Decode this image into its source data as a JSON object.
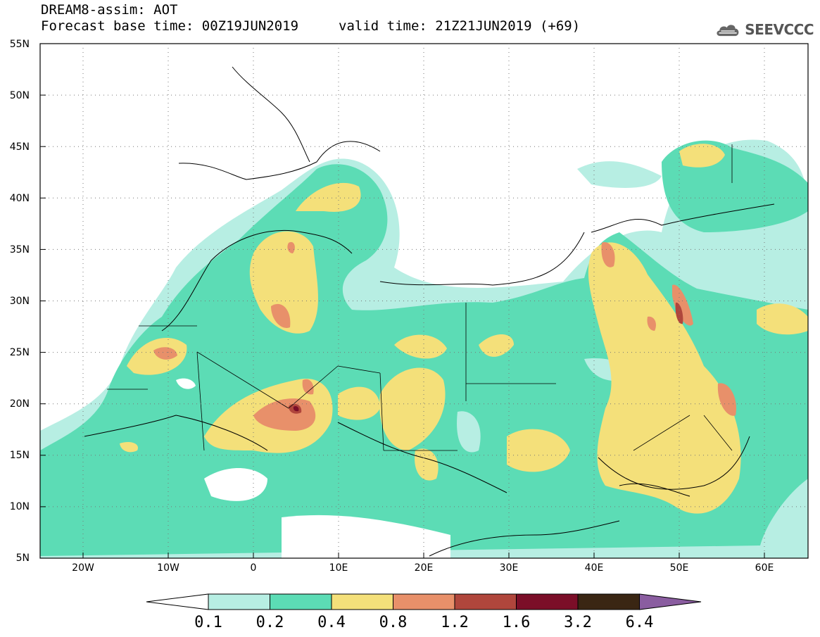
{
  "header": {
    "title_line1": "DREAM8-assim: AOT",
    "title_line2": "Forecast base time: 00Z19JUN2019",
    "valid_time": "valid time: 21Z21JUN2019 (+69)",
    "logo_text": "SEEVCCC",
    "logo_icon": "cloud-icon"
  },
  "axes": {
    "lat_labels": [
      "55N",
      "50N",
      "45N",
      "40N",
      "35N",
      "30N",
      "25N",
      "20N",
      "15N",
      "10N",
      "5N"
    ],
    "lon_labels": [
      "20W",
      "10W",
      "0",
      "10E",
      "20E",
      "30E",
      "40E",
      "50E",
      "60E"
    ]
  },
  "colorbar": {
    "labels": [
      "0.1",
      "0.2",
      "0.4",
      "0.8",
      "1.2",
      "1.6",
      "3.2",
      "6.4"
    ],
    "colors": [
      "#ffffff",
      "#b7eee3",
      "#5cdcb5",
      "#f4e07a",
      "#e8906a",
      "#b0463c",
      "#7b0e28",
      "#3a2613",
      "#8a5da0"
    ]
  },
  "colors": {
    "level_01": "#b7eee3",
    "level_02": "#5cdcb5",
    "level_04": "#f4e07a",
    "level_08": "#e8906a",
    "level_12": "#b0463c",
    "level_16": "#7b0e28"
  }
}
